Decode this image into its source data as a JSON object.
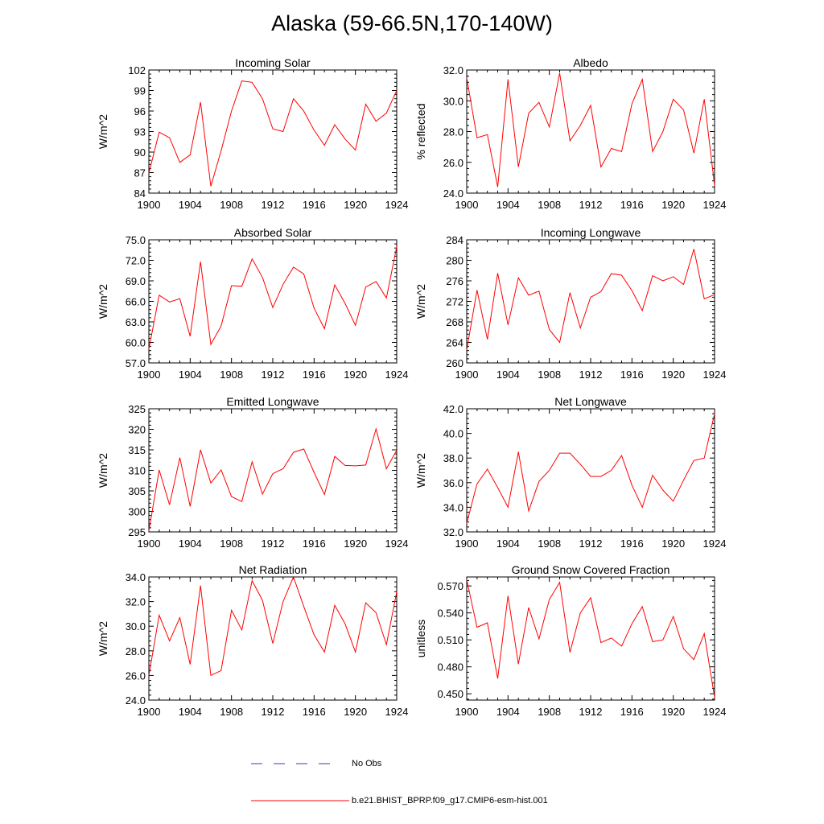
{
  "title": "Alaska (59-66.5N,170-140W)",
  "legend": {
    "items": [
      {
        "label": "No Obs",
        "color": "#3b3bb8",
        "dash": true
      },
      {
        "label": "b.e21.BHIST_BPRP.f09_g17.CMIP6-esm-hist.001",
        "color": "#ff0000",
        "dash": false
      }
    ]
  },
  "chart_data": [
    {
      "type": "line",
      "title": "Incoming Solar",
      "xlabel": "",
      "ylabel": "W/m^2",
      "x": [
        1900,
        1901,
        1902,
        1903,
        1904,
        1905,
        1906,
        1907,
        1908,
        1909,
        1910,
        1911,
        1912,
        1913,
        1914,
        1915,
        1916,
        1917,
        1918,
        1919,
        1920,
        1921,
        1922,
        1923,
        1924
      ],
      "xlim": [
        1900,
        1924
      ],
      "xticks": [
        "1900",
        "1904",
        "1908",
        "1912",
        "1916",
        "1920",
        "1924"
      ],
      "xtick_values": [
        1900,
        1904,
        1908,
        1912,
        1916,
        1920,
        1924
      ],
      "ylim": [
        84,
        102
      ],
      "yticks": [
        "84",
        "87",
        "90",
        "93",
        "96",
        "99",
        "102"
      ],
      "ytick_values": [
        84,
        87,
        90,
        93,
        96,
        99,
        102
      ],
      "series": [
        {
          "color": "#ff0000",
          "values": [
            86.9,
            92.9,
            92.1,
            88.5,
            89.6,
            97.3,
            85.0,
            90.2,
            96.0,
            100.4,
            100.2,
            97.8,
            93.4,
            93.0,
            97.8,
            96.0,
            93.2,
            91.0,
            94.0,
            91.9,
            90.3,
            97.0,
            94.5,
            95.7,
            99.0
          ]
        }
      ]
    },
    {
      "type": "line",
      "title": "Albedo",
      "xlabel": "",
      "ylabel": "% reflected",
      "x": [
        1900,
        1901,
        1902,
        1903,
        1904,
        1905,
        1906,
        1907,
        1908,
        1909,
        1910,
        1911,
        1912,
        1913,
        1914,
        1915,
        1916,
        1917,
        1918,
        1919,
        1920,
        1921,
        1922,
        1923,
        1924
      ],
      "xlim": [
        1900,
        1924
      ],
      "xticks": [
        "1900",
        "1904",
        "1908",
        "1912",
        "1916",
        "1920",
        "1924"
      ],
      "xtick_values": [
        1900,
        1904,
        1908,
        1912,
        1916,
        1920,
        1924
      ],
      "ylim": [
        24.0,
        32.0
      ],
      "yticks": [
        "24.0",
        "26.0",
        "28.0",
        "30.0",
        "32.0"
      ],
      "ytick_values": [
        24,
        26,
        28,
        30,
        32
      ],
      "series": [
        {
          "color": "#ff0000",
          "values": [
            31.5,
            27.6,
            27.8,
            24.4,
            31.4,
            25.7,
            29.2,
            29.9,
            28.3,
            31.8,
            27.4,
            28.4,
            29.7,
            25.7,
            26.9,
            26.7,
            29.8,
            31.4,
            26.7,
            28.0,
            30.1,
            29.4,
            26.6,
            30.1,
            24.5
          ]
        }
      ]
    },
    {
      "type": "line",
      "title": "Absorbed Solar",
      "xlabel": "",
      "ylabel": "W/m^2",
      "x": [
        1900,
        1901,
        1902,
        1903,
        1904,
        1905,
        1906,
        1907,
        1908,
        1909,
        1910,
        1911,
        1912,
        1913,
        1914,
        1915,
        1916,
        1917,
        1918,
        1919,
        1920,
        1921,
        1922,
        1923,
        1924
      ],
      "xlim": [
        1900,
        1924
      ],
      "xticks": [
        "1900",
        "1904",
        "1908",
        "1912",
        "1916",
        "1920",
        "1924"
      ],
      "xtick_values": [
        1900,
        1904,
        1908,
        1912,
        1916,
        1920,
        1924
      ],
      "ylim": [
        57.0,
        75.0
      ],
      "yticks": [
        "57.0",
        "60.0",
        "63.0",
        "66.0",
        "69.0",
        "72.0",
        "75.0"
      ],
      "ytick_values": [
        57,
        60,
        63,
        66,
        69,
        72,
        75
      ],
      "series": [
        {
          "color": "#ff0000",
          "values": [
            59.0,
            66.9,
            65.9,
            66.4,
            60.9,
            71.8,
            59.7,
            62.4,
            68.3,
            68.2,
            72.2,
            69.5,
            65.1,
            68.5,
            71.0,
            70.0,
            65.0,
            62.0,
            68.4,
            65.7,
            62.5,
            68.1,
            68.9,
            66.5,
            74.0
          ]
        }
      ]
    },
    {
      "type": "line",
      "title": "Incoming Longwave",
      "xlabel": "",
      "ylabel": "W/m^2",
      "x": [
        1900,
        1901,
        1902,
        1903,
        1904,
        1905,
        1906,
        1907,
        1908,
        1909,
        1910,
        1911,
        1912,
        1913,
        1914,
        1915,
        1916,
        1917,
        1918,
        1919,
        1920,
        1921,
        1922,
        1923,
        1924
      ],
      "xlim": [
        1900,
        1924
      ],
      "xticks": [
        "1900",
        "1904",
        "1908",
        "1912",
        "1916",
        "1920",
        "1924"
      ],
      "xtick_values": [
        1900,
        1904,
        1908,
        1912,
        1916,
        1920,
        1924
      ],
      "ylim": [
        260,
        284
      ],
      "yticks": [
        "260",
        "264",
        "268",
        "272",
        "276",
        "280",
        "284"
      ],
      "ytick_values": [
        260,
        264,
        268,
        272,
        276,
        280,
        284
      ],
      "series": [
        {
          "color": "#ff0000",
          "values": [
            262.5,
            274.2,
            264.6,
            277.5,
            267.4,
            276.6,
            273.2,
            274.0,
            266.5,
            264.0,
            273.7,
            266.8,
            272.8,
            273.9,
            277.4,
            277.1,
            274.1,
            270.2,
            277.0,
            276.0,
            276.8,
            275.3,
            282.2,
            272.5,
            273.3
          ]
        }
      ]
    },
    {
      "type": "line",
      "title": "Emitted Longwave",
      "xlabel": "",
      "ylabel": "W/m^2",
      "x": [
        1900,
        1901,
        1902,
        1903,
        1904,
        1905,
        1906,
        1907,
        1908,
        1909,
        1910,
        1911,
        1912,
        1913,
        1914,
        1915,
        1916,
        1917,
        1918,
        1919,
        1920,
        1921,
        1922,
        1923,
        1924
      ],
      "xlim": [
        1900,
        1924
      ],
      "xticks": [
        "1900",
        "1904",
        "1908",
        "1912",
        "1916",
        "1920",
        "1924"
      ],
      "xtick_values": [
        1900,
        1904,
        1908,
        1912,
        1916,
        1920,
        1924
      ],
      "ylim": [
        295,
        325
      ],
      "yticks": [
        "295",
        "300",
        "305",
        "310",
        "315",
        "320",
        "325"
      ],
      "ytick_values": [
        295,
        300,
        305,
        310,
        315,
        320,
        325
      ],
      "series": [
        {
          "color": "#ff0000",
          "values": [
            295.2,
            310.1,
            301.6,
            313.1,
            301.2,
            315.0,
            306.9,
            310.1,
            303.6,
            302.4,
            312.1,
            304.2,
            309.2,
            310.4,
            314.4,
            315.2,
            309.5,
            304.1,
            313.4,
            311.2,
            311.1,
            311.3,
            320.1,
            310.4,
            314.9
          ]
        }
      ]
    },
    {
      "type": "line",
      "title": "Net Longwave",
      "xlabel": "",
      "ylabel": "W/m^2",
      "x": [
        1900,
        1901,
        1902,
        1903,
        1904,
        1905,
        1906,
        1907,
        1908,
        1909,
        1910,
        1911,
        1912,
        1913,
        1914,
        1915,
        1916,
        1917,
        1918,
        1919,
        1920,
        1921,
        1922,
        1923,
        1924
      ],
      "xlim": [
        1900,
        1924
      ],
      "xticks": [
        "1900",
        "1904",
        "1908",
        "1912",
        "1916",
        "1920",
        "1924"
      ],
      "xtick_values": [
        1900,
        1904,
        1908,
        1912,
        1916,
        1920,
        1924
      ],
      "ylim": [
        32.0,
        42.0
      ],
      "yticks": [
        "32.0",
        "34.0",
        "36.0",
        "38.0",
        "40.0",
        "42.0"
      ],
      "ytick_values": [
        32,
        34,
        36,
        38,
        40,
        42
      ],
      "series": [
        {
          "color": "#ff0000",
          "values": [
            32.7,
            35.9,
            37.1,
            35.6,
            34.0,
            38.5,
            33.7,
            36.1,
            37.0,
            38.4,
            38.4,
            37.5,
            36.5,
            36.5,
            37.0,
            38.2,
            35.8,
            34.0,
            36.6,
            35.4,
            34.5,
            36.2,
            37.8,
            38.0,
            41.6
          ]
        }
      ]
    },
    {
      "type": "line",
      "title": "Net Radiation",
      "xlabel": "",
      "ylabel": "W/m^2",
      "x": [
        1900,
        1901,
        1902,
        1903,
        1904,
        1905,
        1906,
        1907,
        1908,
        1909,
        1910,
        1911,
        1912,
        1913,
        1914,
        1915,
        1916,
        1917,
        1918,
        1919,
        1920,
        1921,
        1922,
        1923,
        1924
      ],
      "xlim": [
        1900,
        1924
      ],
      "xticks": [
        "1900",
        "1904",
        "1908",
        "1912",
        "1916",
        "1920",
        "1924"
      ],
      "xtick_values": [
        1900,
        1904,
        1908,
        1912,
        1916,
        1920,
        1924
      ],
      "ylim": [
        24.0,
        34.0
      ],
      "yticks": [
        "24.0",
        "26.0",
        "28.0",
        "30.0",
        "32.0",
        "34.0"
      ],
      "ytick_values": [
        24,
        26,
        28,
        30,
        32,
        34
      ],
      "series": [
        {
          "color": "#ff0000",
          "values": [
            26.0,
            30.9,
            28.8,
            30.7,
            26.9,
            33.3,
            26.0,
            26.4,
            31.3,
            29.7,
            33.7,
            32.1,
            28.6,
            32.0,
            34.0,
            31.6,
            29.3,
            27.9,
            31.7,
            30.2,
            27.9,
            31.9,
            31.1,
            28.5,
            32.8
          ]
        }
      ]
    },
    {
      "type": "line",
      "title": "Ground Snow Covered Fraction",
      "xlabel": "",
      "ylabel": "unitless",
      "x": [
        1900,
        1901,
        1902,
        1903,
        1904,
        1905,
        1906,
        1907,
        1908,
        1909,
        1910,
        1911,
        1912,
        1913,
        1914,
        1915,
        1916,
        1917,
        1918,
        1919,
        1920,
        1921,
        1922,
        1923,
        1924
      ],
      "xlim": [
        1900,
        1924
      ],
      "xticks": [
        "1900",
        "1904",
        "1908",
        "1912",
        "1916",
        "1920",
        "1924"
      ],
      "xtick_values": [
        1900,
        1904,
        1908,
        1912,
        1916,
        1920,
        1924
      ],
      "ylim": [
        0.443,
        0.58
      ],
      "yticks": [
        "0.450",
        "0.480",
        "0.510",
        "0.540",
        "0.570"
      ],
      "ytick_values": [
        0.45,
        0.48,
        0.51,
        0.54,
        0.57
      ],
      "series": [
        {
          "color": "#ff0000",
          "values": [
            0.577,
            0.524,
            0.529,
            0.467,
            0.559,
            0.483,
            0.546,
            0.511,
            0.555,
            0.574,
            0.496,
            0.54,
            0.557,
            0.507,
            0.512,
            0.503,
            0.528,
            0.547,
            0.508,
            0.51,
            0.536,
            0.5,
            0.488,
            0.517,
            0.446
          ]
        }
      ]
    }
  ]
}
